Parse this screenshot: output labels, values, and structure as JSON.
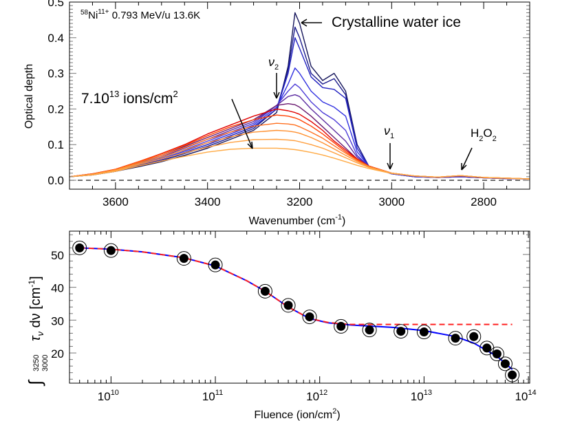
{
  "chart_data": [
    {
      "type": "line",
      "ylabel": "Optical depth",
      "xlabel": "Wavenumber (cm",
      "xlabel_sup": "-1",
      "xlabel_end": ")",
      "xlim": [
        3700,
        2700
      ],
      "ylim": [
        -0.025,
        0.5
      ],
      "x_ticks": [
        3600,
        3400,
        3200,
        3000,
        2800
      ],
      "y_ticks": [
        "0.0",
        "0.1",
        "0.2",
        "0.3",
        "0.4",
        "0.5"
      ],
      "baseline": 0.0,
      "header": {
        "isotope": "58",
        "element": "Ni",
        "charge": "11+",
        "rest": " 0.793 MeV/u 13.6K"
      },
      "annotations": {
        "crystalline": "Crystalline water ice",
        "fluence_main": "7.10",
        "fluence_exp": "13",
        "fluence_unit": " ions/cm",
        "fluence_unit_sup": "2",
        "nu2": "ν",
        "nu2_sub": "2",
        "nu1": "ν",
        "nu1_sub": "1",
        "h2o2": [
          "H",
          "2",
          "O",
          "2"
        ]
      },
      "x": [
        3700,
        3650,
        3600,
        3550,
        3500,
        3450,
        3400,
        3350,
        3300,
        3250,
        3225,
        3210,
        3200,
        3175,
        3150,
        3125,
        3100,
        3075,
        3050,
        3000,
        2950,
        2900,
        2850,
        2800,
        2750,
        2700
      ],
      "series": [
        {
          "color": "#14145a",
          "values": [
            0.01,
            0.015,
            0.025,
            0.038,
            0.052,
            0.07,
            0.09,
            0.115,
            0.14,
            0.19,
            0.32,
            0.47,
            0.44,
            0.32,
            0.28,
            0.3,
            0.25,
            0.1,
            0.04,
            0.018,
            0.01,
            0.008,
            0.01,
            0.007,
            0.005,
            0.004
          ]
        },
        {
          "color": "#1a1a8c",
          "values": [
            0.01,
            0.015,
            0.025,
            0.04,
            0.055,
            0.075,
            0.095,
            0.12,
            0.145,
            0.2,
            0.31,
            0.43,
            0.4,
            0.3,
            0.27,
            0.285,
            0.24,
            0.1,
            0.04,
            0.018,
            0.01,
            0.008,
            0.01,
            0.007,
            0.005,
            0.004
          ]
        },
        {
          "color": "#2020c0",
          "values": [
            0.01,
            0.016,
            0.026,
            0.042,
            0.058,
            0.078,
            0.1,
            0.125,
            0.15,
            0.2,
            0.3,
            0.4,
            0.37,
            0.29,
            0.26,
            0.255,
            0.23,
            0.09,
            0.04,
            0.018,
            0.01,
            0.008,
            0.01,
            0.007,
            0.005,
            0.004
          ]
        },
        {
          "color": "#3030e0",
          "values": [
            0.01,
            0.016,
            0.027,
            0.044,
            0.06,
            0.082,
            0.105,
            0.13,
            0.155,
            0.205,
            0.27,
            0.315,
            0.3,
            0.25,
            0.22,
            0.205,
            0.18,
            0.08,
            0.04,
            0.018,
            0.01,
            0.008,
            0.01,
            0.007,
            0.005,
            0.004
          ]
        },
        {
          "color": "#4b3ad6",
          "values": [
            0.01,
            0.017,
            0.028,
            0.046,
            0.063,
            0.086,
            0.11,
            0.135,
            0.16,
            0.21,
            0.25,
            0.27,
            0.26,
            0.22,
            0.19,
            0.17,
            0.14,
            0.07,
            0.04,
            0.019,
            0.011,
            0.008,
            0.011,
            0.007,
            0.005,
            0.004
          ]
        },
        {
          "color": "#5a2aa0",
          "values": [
            0.01,
            0.017,
            0.029,
            0.048,
            0.066,
            0.09,
            0.115,
            0.14,
            0.165,
            0.21,
            0.235,
            0.24,
            0.235,
            0.2,
            0.17,
            0.14,
            0.11,
            0.065,
            0.04,
            0.019,
            0.011,
            0.008,
            0.011,
            0.007,
            0.005,
            0.004
          ]
        },
        {
          "color": "#6a1a70",
          "values": [
            0.01,
            0.018,
            0.03,
            0.05,
            0.07,
            0.095,
            0.12,
            0.145,
            0.17,
            0.21,
            0.215,
            0.212,
            0.205,
            0.18,
            0.15,
            0.12,
            0.09,
            0.06,
            0.04,
            0.02,
            0.012,
            0.008,
            0.012,
            0.007,
            0.005,
            0.004
          ]
        },
        {
          "color": "#e00000",
          "values": [
            0.01,
            0.018,
            0.031,
            0.052,
            0.075,
            0.1,
            0.13,
            0.155,
            0.18,
            0.2,
            0.195,
            0.19,
            0.185,
            0.165,
            0.14,
            0.11,
            0.085,
            0.06,
            0.04,
            0.02,
            0.012,
            0.009,
            0.013,
            0.008,
            0.006,
            0.004
          ]
        },
        {
          "color": "#ff4000",
          "values": [
            0.01,
            0.018,
            0.031,
            0.052,
            0.074,
            0.098,
            0.125,
            0.15,
            0.17,
            0.183,
            0.18,
            0.175,
            0.17,
            0.152,
            0.13,
            0.105,
            0.08,
            0.058,
            0.04,
            0.02,
            0.012,
            0.009,
            0.013,
            0.008,
            0.006,
            0.004
          ]
        },
        {
          "color": "#ff7020",
          "values": [
            0.01,
            0.017,
            0.03,
            0.05,
            0.07,
            0.092,
            0.115,
            0.135,
            0.152,
            0.16,
            0.158,
            0.155,
            0.15,
            0.135,
            0.118,
            0.097,
            0.076,
            0.056,
            0.039,
            0.02,
            0.012,
            0.009,
            0.013,
            0.008,
            0.006,
            0.004
          ]
        },
        {
          "color": "#ff9030",
          "values": [
            0.01,
            0.017,
            0.029,
            0.047,
            0.065,
            0.085,
            0.105,
            0.122,
            0.135,
            0.14,
            0.138,
            0.135,
            0.132,
            0.12,
            0.105,
            0.088,
            0.07,
            0.053,
            0.038,
            0.02,
            0.012,
            0.009,
            0.013,
            0.008,
            0.006,
            0.004
          ]
        },
        {
          "color": "#ffa040",
          "values": [
            0.01,
            0.016,
            0.027,
            0.044,
            0.06,
            0.077,
            0.093,
            0.106,
            0.114,
            0.115,
            0.113,
            0.111,
            0.108,
            0.1,
            0.09,
            0.077,
            0.063,
            0.049,
            0.036,
            0.02,
            0.012,
            0.009,
            0.013,
            0.008,
            0.006,
            0.004
          ]
        },
        {
          "color": "#ffaa44",
          "values": [
            0.01,
            0.015,
            0.025,
            0.04,
            0.054,
            0.067,
            0.079,
            0.087,
            0.09,
            0.09,
            0.088,
            0.086,
            0.084,
            0.078,
            0.071,
            0.062,
            0.052,
            0.042,
            0.033,
            0.019,
            0.012,
            0.009,
            0.013,
            0.008,
            0.006,
            0.004
          ]
        }
      ]
    },
    {
      "type": "scatter",
      "xlabel": "Fluence (ion/cm",
      "xlabel_sup": "2",
      "xlabel_end": ")",
      "ylabel": {
        "integral": "∫",
        "upper": "3250",
        "lower": "3000",
        "tau": "τ",
        "tau_sub": "ν",
        "rest": " dν  [cm",
        "sup": "-1",
        "end": "]"
      },
      "x_scale": "log",
      "xlim": [
        4000000000.0,
        103000000000000.0
      ],
      "ylim": [
        10.8,
        57.1
      ],
      "x_ticks": [
        {
          "base": "10",
          "exp": "10"
        },
        {
          "base": "10",
          "exp": "11"
        },
        {
          "base": "10",
          "exp": "12"
        },
        {
          "base": "10",
          "exp": "13"
        },
        {
          "base": "10",
          "exp": "14"
        }
      ],
      "y_ticks": [
        "20",
        "30",
        "40",
        "50"
      ],
      "points": {
        "x": [
          5000000000.0,
          10000000000.0,
          50000000000.0,
          100000000000.0,
          300000000000.0,
          500000000000.0,
          800000000000.0,
          1600000000000.0,
          3000000000000.0,
          6000000000000.0,
          10000000000000.0,
          20000000000000.0,
          30000000000000.0,
          40000000000000.0,
          50000000000000.0,
          60000000000000.0,
          70000000000000.0
        ],
        "y": [
          52.0,
          51.2,
          48.8,
          46.8,
          38.8,
          34.5,
          31.0,
          28.1,
          27.0,
          26.6,
          26.4,
          24.5,
          25.0,
          21.5,
          19.7,
          16.7,
          13.3
        ]
      },
      "fits": [
        {
          "style": "solid",
          "color": "#0000ff",
          "x": [
            5000000000.0,
            10000000000.0,
            20000000000.0,
            50000000000.0,
            100000000000.0,
            200000000000.0,
            300000000000.0,
            500000000000.0,
            800000000000.0,
            1200000000000.0,
            2000000000000.0,
            5000000000000.0,
            10000000000000.0,
            20000000000000.0,
            30000000000000.0,
            50000000000000.0,
            70000000000000.0
          ],
          "y": [
            52.0,
            51.6,
            50.8,
            49.0,
            46.5,
            42.0,
            38.8,
            34.0,
            30.5,
            29.2,
            28.5,
            27.8,
            26.8,
            25.0,
            23.0,
            19.0,
            15.0
          ]
        },
        {
          "style": "dashed",
          "color": "#ff2020",
          "x": [
            5000000000.0,
            10000000000.0,
            20000000000.0,
            50000000000.0,
            100000000000.0,
            200000000000.0,
            300000000000.0,
            500000000000.0,
            800000000000.0,
            1200000000000.0,
            1600000000000.0,
            2000000000000.0,
            5000000000000.0,
            10000000000000.0,
            20000000000000.0,
            50000000000000.0,
            70000000000000.0
          ],
          "y": [
            52.0,
            51.6,
            50.8,
            49.0,
            46.5,
            42.0,
            38.8,
            34.0,
            30.5,
            29.3,
            28.9,
            28.7,
            28.7,
            28.7,
            28.7,
            28.7,
            28.7
          ]
        }
      ]
    }
  ]
}
